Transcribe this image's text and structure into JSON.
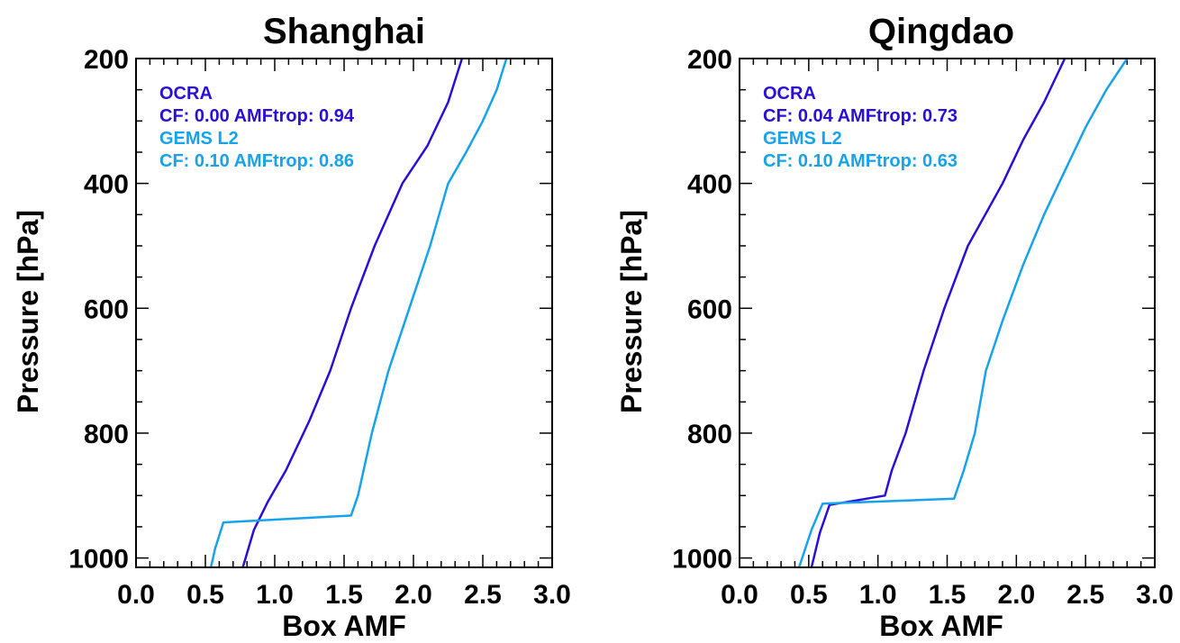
{
  "colors": {
    "ocra": "#2a0fd6",
    "gems": "#17a3ec"
  },
  "chart_data": [
    {
      "type": "line",
      "title": "Shanghai",
      "xlabel": "Box AMF",
      "ylabel": "Pressure [hPa]",
      "xlim": [
        0.0,
        3.0
      ],
      "ylim": [
        1015,
        200
      ],
      "x_ticks": [
        "0.0",
        "0.5",
        "1.0",
        "1.5",
        "2.0",
        "2.5",
        "3.0"
      ],
      "y_ticks": [
        "200",
        "400",
        "600",
        "800",
        "1000"
      ],
      "legend_position": "top-left",
      "legend": [
        "OCRA",
        "CF: 0.00 AMFtrop: 0.94",
        "GEMS L2",
        "CF: 0.10 AMFtrop: 0.86"
      ],
      "series": [
        {
          "name": "OCRA",
          "color": "#2a0fd6",
          "points": [
            [
              2.35,
              200
            ],
            [
              2.25,
              270
            ],
            [
              2.1,
              340
            ],
            [
              1.92,
              400
            ],
            [
              1.72,
              500
            ],
            [
              1.55,
              600
            ],
            [
              1.4,
              700
            ],
            [
              1.25,
              780
            ],
            [
              1.08,
              860
            ],
            [
              0.95,
              910
            ],
            [
              0.85,
              955
            ],
            [
              0.77,
              1015
            ]
          ]
        },
        {
          "name": "GEMS L2",
          "color": "#17a3ec",
          "points": [
            [
              2.67,
              200
            ],
            [
              2.6,
              250
            ],
            [
              2.5,
              300
            ],
            [
              2.38,
              350
            ],
            [
              2.25,
              400
            ],
            [
              2.12,
              500
            ],
            [
              1.97,
              600
            ],
            [
              1.82,
              700
            ],
            [
              1.7,
              800
            ],
            [
              1.64,
              860
            ],
            [
              1.6,
              900
            ],
            [
              1.55,
              932
            ],
            [
              0.63,
              943
            ],
            [
              0.57,
              985
            ],
            [
              0.54,
              1015
            ]
          ]
        }
      ]
    },
    {
      "type": "line",
      "title": "Qingdao",
      "xlabel": "Box AMF",
      "ylabel": "Pressure [hPa]",
      "xlim": [
        0.0,
        3.0
      ],
      "ylim": [
        1015,
        200
      ],
      "x_ticks": [
        "0.0",
        "0.5",
        "1.0",
        "1.5",
        "2.0",
        "2.5",
        "3.0"
      ],
      "y_ticks": [
        "200",
        "400",
        "600",
        "800",
        "1000"
      ],
      "legend_position": "top-left",
      "legend": [
        "OCRA",
        "CF: 0.04 AMFtrop: 0.73",
        "GEMS L2",
        "CF: 0.10 AMFtrop: 0.63"
      ],
      "series": [
        {
          "name": "OCRA",
          "color": "#2a0fd6",
          "points": [
            [
              2.35,
              200
            ],
            [
              2.2,
              270
            ],
            [
              2.05,
              330
            ],
            [
              1.9,
              400
            ],
            [
              1.65,
              500
            ],
            [
              1.48,
              600
            ],
            [
              1.33,
              700
            ],
            [
              1.2,
              800
            ],
            [
              1.1,
              860
            ],
            [
              1.05,
              900
            ],
            [
              0.65,
              915
            ],
            [
              0.58,
              960
            ],
            [
              0.52,
              1015
            ]
          ]
        },
        {
          "name": "GEMS L2",
          "color": "#17a3ec",
          "points": [
            [
              2.8,
              200
            ],
            [
              2.65,
              250
            ],
            [
              2.5,
              310
            ],
            [
              2.35,
              380
            ],
            [
              2.2,
              450
            ],
            [
              2.05,
              530
            ],
            [
              1.9,
              620
            ],
            [
              1.78,
              700
            ],
            [
              1.7,
              800
            ],
            [
              1.62,
              860
            ],
            [
              1.55,
              905
            ],
            [
              0.6,
              913
            ],
            [
              0.52,
              955
            ],
            [
              0.43,
              1015
            ]
          ]
        }
      ]
    }
  ]
}
